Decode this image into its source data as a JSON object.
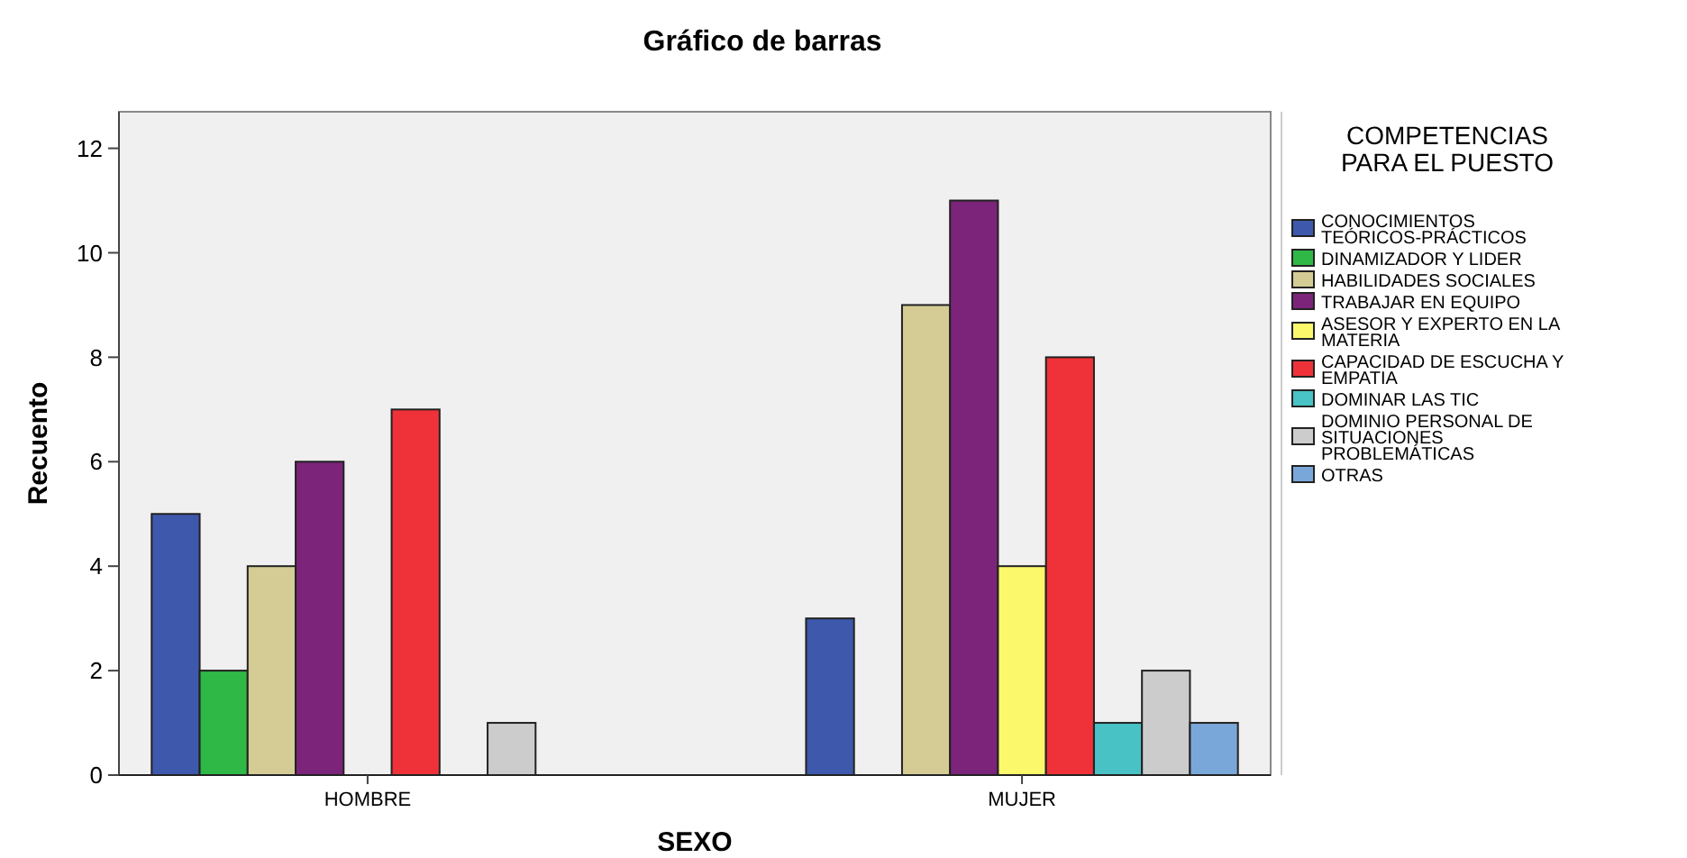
{
  "chart_data": {
    "type": "bar",
    "title": "Gráfico de barras",
    "xlabel": "SEXO",
    "ylabel": "Recuento",
    "legend_title": "COMPETENCIAS PARA EL PUESTO",
    "categories": [
      "HOMBRE",
      "MUJER"
    ],
    "ylim": [
      0,
      12.7
    ],
    "yticks": [
      0,
      2,
      4,
      6,
      8,
      10,
      12
    ],
    "grid": false,
    "legend": "right",
    "series": [
      {
        "name": "CONOCIMIENTOS TEÓRICOS-PRÁCTICOS",
        "color": "#3e58ac",
        "values": [
          5,
          3
        ]
      },
      {
        "name": "DINAMIZADOR Y LIDER",
        "color": "#2fb845",
        "values": [
          2,
          null
        ]
      },
      {
        "name": "HABILIDADES SOCIALES",
        "color": "#d4cc94",
        "values": [
          4,
          9
        ]
      },
      {
        "name": "TRABAJAR EN EQUIPO",
        "color": "#7b2479",
        "values": [
          6,
          11
        ]
      },
      {
        "name": "ASESOR Y EXPERTO EN LA MATERIA",
        "color": "#fbf86c",
        "values": [
          null,
          4
        ]
      },
      {
        "name": "CAPACIDAD DE ESCUCHA Y EMPATIA",
        "color": "#ef3239",
        "values": [
          7,
          8
        ]
      },
      {
        "name": "DOMINAR LAS TIC",
        "color": "#48c2c5",
        "values": [
          null,
          1
        ]
      },
      {
        "name": "DOMINIO PERSONAL DE SITUACIONES PROBLEMÁTICAS",
        "color": "#cccccc",
        "values": [
          1,
          2
        ]
      },
      {
        "name": "OTRAS",
        "color": "#7aa7d9",
        "values": [
          null,
          1
        ]
      }
    ]
  }
}
